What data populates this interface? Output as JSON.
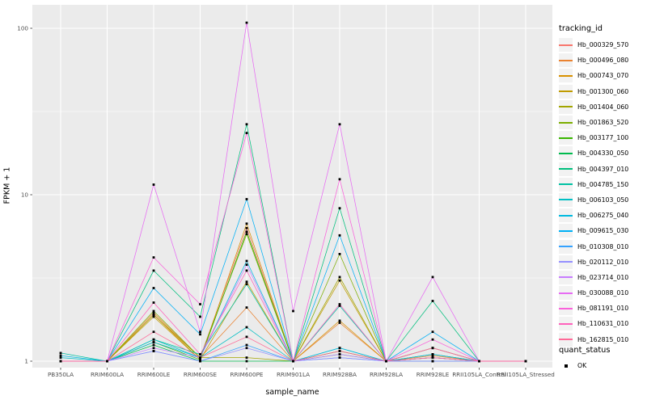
{
  "figure": {
    "background": "#FFFFFF",
    "panel_bg": "#EBEBEB",
    "grid_color": "#FFFFFF",
    "tick_color": "#333333",
    "tick_label_color": "#4D4D4D",
    "point_color": "#000000"
  },
  "chart_data": {
    "type": "line",
    "title": "",
    "xlabel": "sample_name",
    "ylabel": "FPKM + 1",
    "y_scale": "log10",
    "y_ticks": [
      1,
      10,
      100
    ],
    "ylim": [
      0.93,
      140
    ],
    "grid": true,
    "legend_position": "right",
    "categories": [
      "PB350LA",
      "RRIM600LA",
      "RRIM600LE",
      "RRIM600SE",
      "RRIM600PE",
      "RRIM901LA",
      "RRIM928BA",
      "RRIM928LA",
      "RRIM928LE",
      "RRII105LA_Control",
      "RRII105LA_Stressed"
    ],
    "series": [
      {
        "name": "Hb_000329_570",
        "color": "#F8766D",
        "values": [
          1.0,
          1.0,
          1.9,
          1.05,
          6.3,
          1.0,
          1.15,
          1.0,
          1.05,
          1.0,
          1.0
        ]
      },
      {
        "name": "Hb_000496_080",
        "color": "#EA8331",
        "values": [
          1.0,
          1.0,
          1.95,
          1.05,
          2.1,
          1.0,
          1.7,
          1.0,
          1.08,
          1.0,
          1.0
        ]
      },
      {
        "name": "Hb_000743_070",
        "color": "#D89000",
        "values": [
          1.0,
          1.0,
          1.9,
          1.02,
          6.7,
          1.0,
          1.75,
          1.0,
          1.05,
          1.0,
          1.0
        ]
      },
      {
        "name": "Hb_001300_060",
        "color": "#C09B00",
        "values": [
          1.0,
          1.0,
          1.85,
          1.02,
          3.0,
          1.0,
          3.05,
          1.0,
          1.1,
          1.0,
          1.0
        ]
      },
      {
        "name": "Hb_001404_060",
        "color": "#A3A500",
        "values": [
          1.0,
          1.0,
          1.9,
          1.05,
          1.05,
          1.0,
          3.2,
          1.0,
          1.2,
          1.0,
          1.0
        ]
      },
      {
        "name": "Hb_001863_520",
        "color": "#7CAE00",
        "values": [
          1.0,
          1.0,
          2.0,
          1.05,
          5.8,
          1.0,
          4.4,
          1.0,
          1.2,
          1.0,
          1.0
        ]
      },
      {
        "name": "Hb_003177_100",
        "color": "#39B600",
        "values": [
          1.0,
          1.0,
          1.3,
          1.02,
          6.0,
          1.0,
          1.15,
          1.0,
          1.05,
          1.0,
          1.0
        ]
      },
      {
        "name": "Hb_004330_050",
        "color": "#00BB4E",
        "values": [
          1.0,
          1.0,
          1.25,
          1.0,
          1.0,
          1.0,
          1.1,
          1.0,
          1.0,
          1.0,
          1.0
        ]
      },
      {
        "name": "Hb_004397_010",
        "color": "#00BF7D",
        "values": [
          1.0,
          1.0,
          3.5,
          1.85,
          26.5,
          1.0,
          8.3,
          1.0,
          2.3,
          1.0,
          1.0
        ]
      },
      {
        "name": "Hb_004785_150",
        "color": "#00C1A3",
        "values": [
          1.12,
          1.0,
          1.35,
          1.1,
          2.9,
          1.0,
          2.15,
          1.0,
          1.1,
          1.0,
          1.0
        ]
      },
      {
        "name": "Hb_006103_050",
        "color": "#00BFC4",
        "values": [
          1.05,
          1.0,
          1.35,
          1.05,
          1.6,
          1.0,
          1.2,
          1.0,
          1.05,
          1.0,
          1.0
        ]
      },
      {
        "name": "Hb_006275_040",
        "color": "#00BAE0",
        "values": [
          1.08,
          1.0,
          1.3,
          1.05,
          4.0,
          1.0,
          1.2,
          1.0,
          1.1,
          1.0,
          1.0
        ]
      },
      {
        "name": "Hb_009615_030",
        "color": "#00B0F6",
        "values": [
          1.0,
          1.0,
          2.75,
          1.45,
          9.4,
          1.0,
          5.7,
          1.0,
          1.5,
          1.0,
          1.0
        ]
      },
      {
        "name": "Hb_010308_010",
        "color": "#35A2FF",
        "values": [
          1.0,
          1.0,
          1.15,
          1.0,
          1.25,
          1.0,
          1.05,
          1.0,
          1.0,
          1.0,
          1.0
        ]
      },
      {
        "name": "Hb_020112_010",
        "color": "#9590FF",
        "values": [
          1.0,
          1.0,
          1.15,
          1.0,
          1.2,
          1.0,
          1.05,
          1.0,
          1.0,
          1.0,
          1.0
        ]
      },
      {
        "name": "Hb_023714_010",
        "color": "#C77CFF",
        "values": [
          1.0,
          1.0,
          1.2,
          1.05,
          3.8,
          1.0,
          1.1,
          1.0,
          1.05,
          1.0,
          1.0
        ]
      },
      {
        "name": "Hb_030088_010",
        "color": "#E76BF3",
        "values": [
          1.0,
          1.0,
          11.5,
          1.5,
          108.0,
          2.0,
          26.5,
          1.0,
          3.2,
          1.0,
          1.0
        ]
      },
      {
        "name": "Hb_081191_010",
        "color": "#FA62DB",
        "values": [
          1.0,
          1.0,
          4.2,
          2.2,
          23.5,
          1.0,
          12.4,
          1.0,
          1.35,
          1.0,
          1.0
        ]
      },
      {
        "name": "Hb_110631_010",
        "color": "#FF62BC",
        "values": [
          1.0,
          1.0,
          2.25,
          1.1,
          3.5,
          1.0,
          2.2,
          1.0,
          1.2,
          1.0,
          1.0
        ]
      },
      {
        "name": "Hb_162815_010",
        "color": "#FF6A98",
        "values": [
          1.0,
          1.0,
          1.5,
          1.05,
          1.4,
          1.0,
          1.15,
          1.0,
          1.05,
          1.0,
          1.0
        ]
      }
    ]
  },
  "legend": {
    "tracking_title": "tracking_id",
    "quant_title": "quant_status",
    "quant_items": [
      {
        "label": "OK",
        "shape": "filled-square",
        "color": "#000000"
      }
    ]
  }
}
